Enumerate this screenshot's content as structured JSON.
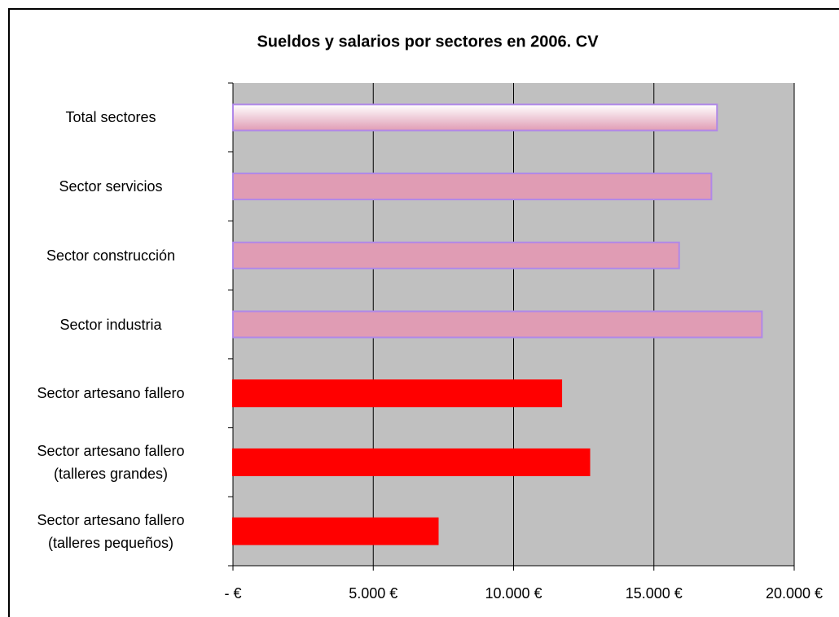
{
  "chart_data": {
    "type": "barh",
    "title": "Sueldos y salarios por sectores en 2006. CV",
    "categories": [
      "Total sectores",
      "Sector servicios",
      "Sector construcción",
      "Sector industria",
      "Sector artesano fallero",
      "Sector artesano fallero\n(talleres grandes)",
      "Sector artesano fallero\n(talleres pequeños)"
    ],
    "values": [
      17250,
      17050,
      15900,
      18850,
      11700,
      12700,
      7300
    ],
    "colors": [
      "#f2c4d4",
      "#e09cb4",
      "#e09cb4",
      "#e09cb4",
      "#ff0000",
      "#ff0000",
      "#ff0000"
    ],
    "edge_colors": [
      "#b088e8",
      "#b088e8",
      "#b088e8",
      "#b088e8",
      "#ff0000",
      "#ff0000",
      "#ff0000"
    ],
    "xlim": [
      0,
      20000
    ],
    "xticks": [
      {
        "value": 0,
        "label": "- €"
      },
      {
        "value": 5000,
        "label": "5.000 €"
      },
      {
        "value": 10000,
        "label": "10.000 €"
      },
      {
        "value": 15000,
        "label": "15.000 €"
      },
      {
        "value": 20000,
        "label": "20.000 €"
      }
    ],
    "grid": true,
    "plot_background": "#c0c0c0"
  }
}
